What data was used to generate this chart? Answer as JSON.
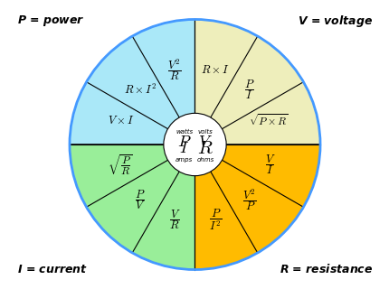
{
  "bg_color": "#ffffff",
  "outer_circle_color": "#4499ff",
  "quadrant_colors": {
    "top_left": "#aae8f8",
    "top_right": "#eeeebb",
    "bottom_left": "#99ee99",
    "bottom_right": "#ffbb00"
  },
  "sector_angles": {
    "TL": [
      90,
      120,
      150,
      180
    ],
    "TR": [
      0,
      30,
      60,
      90
    ],
    "BL": [
      180,
      210,
      240,
      270
    ],
    "BR": [
      270,
      300,
      330,
      360
    ]
  },
  "r_outer": 1.0,
  "r_inner": 0.25,
  "formula_r": 0.62
}
